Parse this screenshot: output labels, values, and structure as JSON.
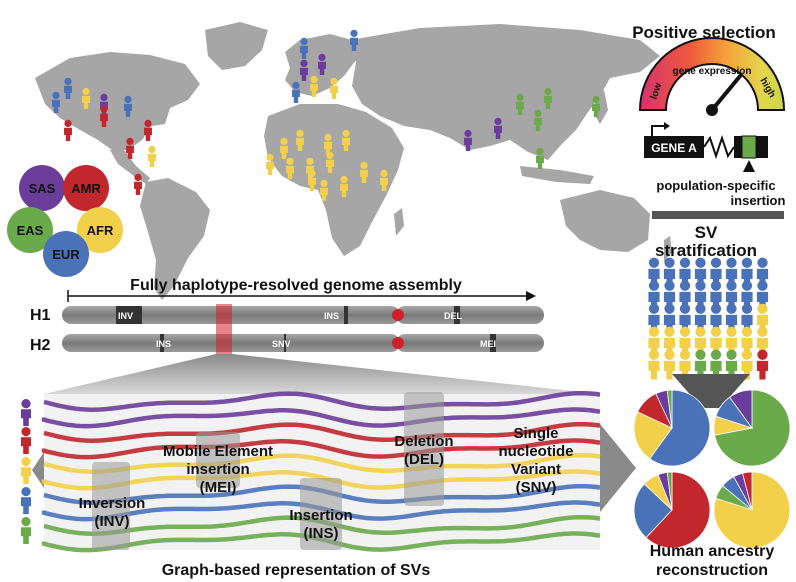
{
  "colors": {
    "SAS": "#6a3d9a",
    "AMR": "#c1272d",
    "AFR": "#f2d04a",
    "EAS": "#6aaa4b",
    "EUR": "#4a72b8",
    "map": "#a6a6a6",
    "chromosome": "#8c8c8c",
    "centromere": "#d0202a"
  },
  "titles": {
    "positive_selection": "Positive selection",
    "sv_stratification_1": "SV",
    "sv_stratification_2": "stratification",
    "haplotype_assembly": "Fully haplotype-resolved genome assembly",
    "graph_representation": "Graph-based representation of SVs",
    "ancestry_1": "Human ancestry",
    "ancestry_2": "reconstruction"
  },
  "populations": [
    "SAS",
    "AMR",
    "EAS",
    "AFR",
    "EUR"
  ],
  "gauge": {
    "labels": [
      "low",
      "gene expression",
      "high"
    ],
    "level": 0.72,
    "icon": "gauge-icon"
  },
  "gene": {
    "label": "GENE A",
    "insertion_1": "population-specific",
    "insertion_2": "insertion"
  },
  "haplotypes": {
    "h1": {
      "label": "H1",
      "markers": [
        {
          "label": "INV"
        },
        {
          "label": "INS"
        },
        {
          "label": "DEL"
        }
      ]
    },
    "h2": {
      "label": "H2",
      "markers": [
        {
          "label": "INS"
        },
        {
          "label": "SNV"
        },
        {
          "label": "MEI"
        }
      ]
    }
  },
  "sv_types": [
    {
      "line1": "Inversion",
      "line2": "(INV)"
    },
    {
      "line1": "Mobile Element",
      "line2": "insertion",
      "line3": "(MEI)"
    },
    {
      "line1": "Insertion",
      "line2": "(INS)"
    },
    {
      "line1": "Deletion",
      "line2": "(DEL)"
    },
    {
      "line1": "Single",
      "line2": "nucleotide",
      "line3": "Variant",
      "line4": "(SNV)"
    }
  ],
  "stratification_grid": [
    [
      "EUR",
      "EUR",
      "EUR",
      "EUR",
      "EUR",
      "EUR",
      "EUR",
      "EUR"
    ],
    [
      "EUR",
      "EUR",
      "EUR",
      "EUR",
      "EUR",
      "EUR",
      "EUR",
      "EUR"
    ],
    [
      "EUR",
      "EUR",
      "EUR",
      "EUR",
      "EUR",
      "EUR",
      "EUR",
      "AFR"
    ],
    [
      "AFR",
      "AFR",
      "AFR",
      "AFR",
      "AFR",
      "AFR",
      "AFR",
      "AFR"
    ],
    [
      "AFR",
      "AFR",
      "AFR",
      "EAS",
      "EAS",
      "EAS",
      "AFR",
      "AMR"
    ]
  ],
  "chart_data": {
    "type": "pie",
    "pies": [
      {
        "slices": [
          {
            "group": "EUR",
            "value": 60
          },
          {
            "group": "AFR",
            "value": 22
          },
          {
            "group": "AMR",
            "value": 11
          },
          {
            "group": "SAS",
            "value": 5
          },
          {
            "group": "EAS",
            "value": 2
          }
        ]
      },
      {
        "slices": [
          {
            "group": "EAS",
            "value": 72
          },
          {
            "group": "AFR",
            "value": 8
          },
          {
            "group": "EUR",
            "value": 10
          },
          {
            "group": "SAS",
            "value": 10
          }
        ]
      },
      {
        "slices": [
          {
            "group": "AMR",
            "value": 62
          },
          {
            "group": "EUR",
            "value": 25
          },
          {
            "group": "AFR",
            "value": 7
          },
          {
            "group": "SAS",
            "value": 4
          },
          {
            "group": "EAS",
            "value": 2
          }
        ]
      },
      {
        "slices": [
          {
            "group": "AFR",
            "value": 80
          },
          {
            "group": "EAS",
            "value": 6
          },
          {
            "group": "EUR",
            "value": 6
          },
          {
            "group": "SAS",
            "value": 4
          },
          {
            "group": "AMR",
            "value": 4
          }
        ]
      }
    ]
  }
}
